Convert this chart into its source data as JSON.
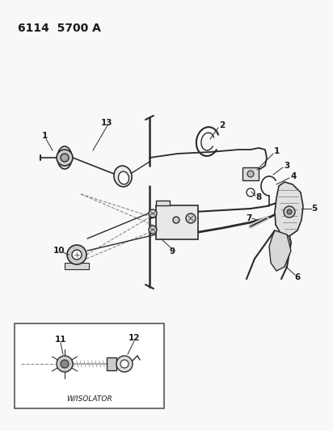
{
  "title": "6114  5700 A",
  "bg_color": "#f8f8f6",
  "line_color": "#2a2a2a",
  "text_color": "#1a1a1a",
  "inset_label": "W/ISOLATOR",
  "label_fontsize": 7.5,
  "label_fontweight": "bold",
  "title_fontsize": 10
}
